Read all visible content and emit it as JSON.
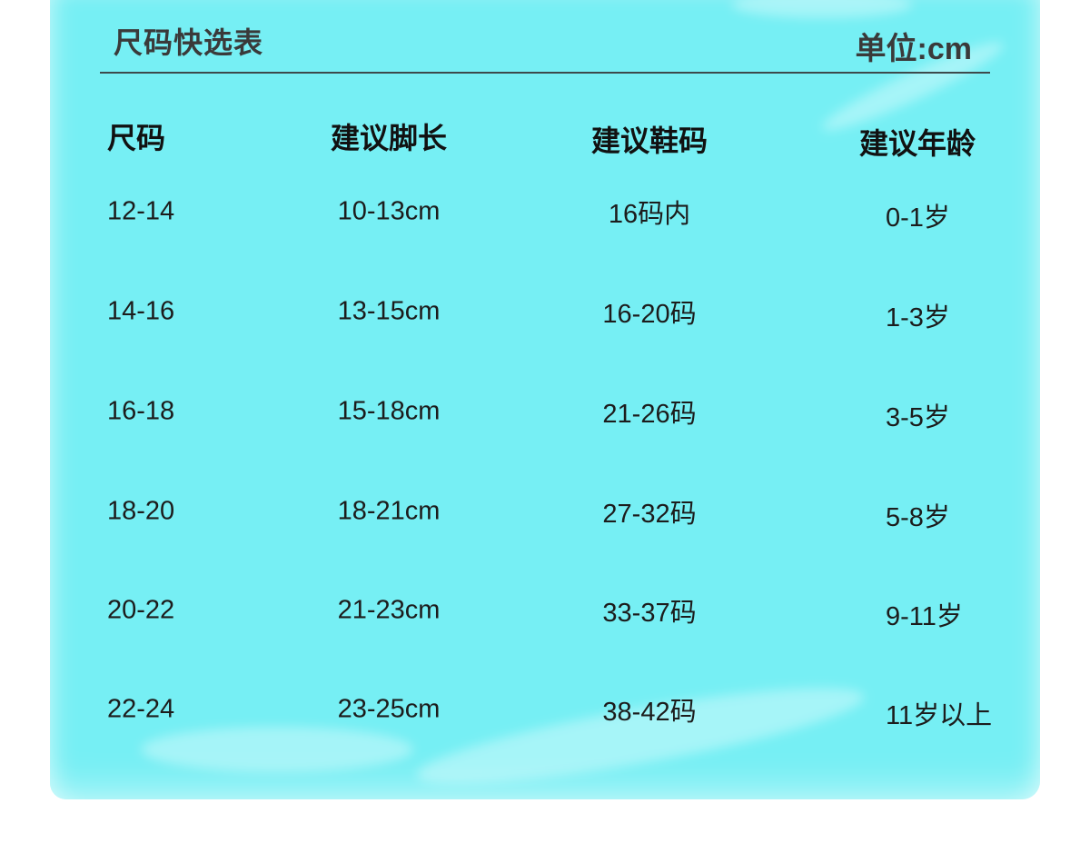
{
  "header": {
    "title": "尺码快选表",
    "unit": "单位:cm"
  },
  "colors": {
    "background": "#76eff4",
    "text": "#1c1c1c",
    "title": "#3a3a3a"
  },
  "table": {
    "columns": [
      "尺码",
      "建议脚长",
      "建议鞋码",
      "建议年龄"
    ],
    "rows": [
      [
        "12-14",
        "10-13cm",
        "16码内",
        "0-1岁"
      ],
      [
        "14-16",
        "13-15cm",
        "16-20码",
        "1-3岁"
      ],
      [
        "16-18",
        "15-18cm",
        "21-26码",
        "3-5岁"
      ],
      [
        "18-20",
        "18-21cm",
        "27-32码",
        "5-8岁"
      ],
      [
        "20-22",
        "21-23cm",
        "33-37码",
        "9-11岁"
      ],
      [
        "22-24",
        "23-25cm",
        "38-42码",
        "11岁以上"
      ]
    ]
  }
}
